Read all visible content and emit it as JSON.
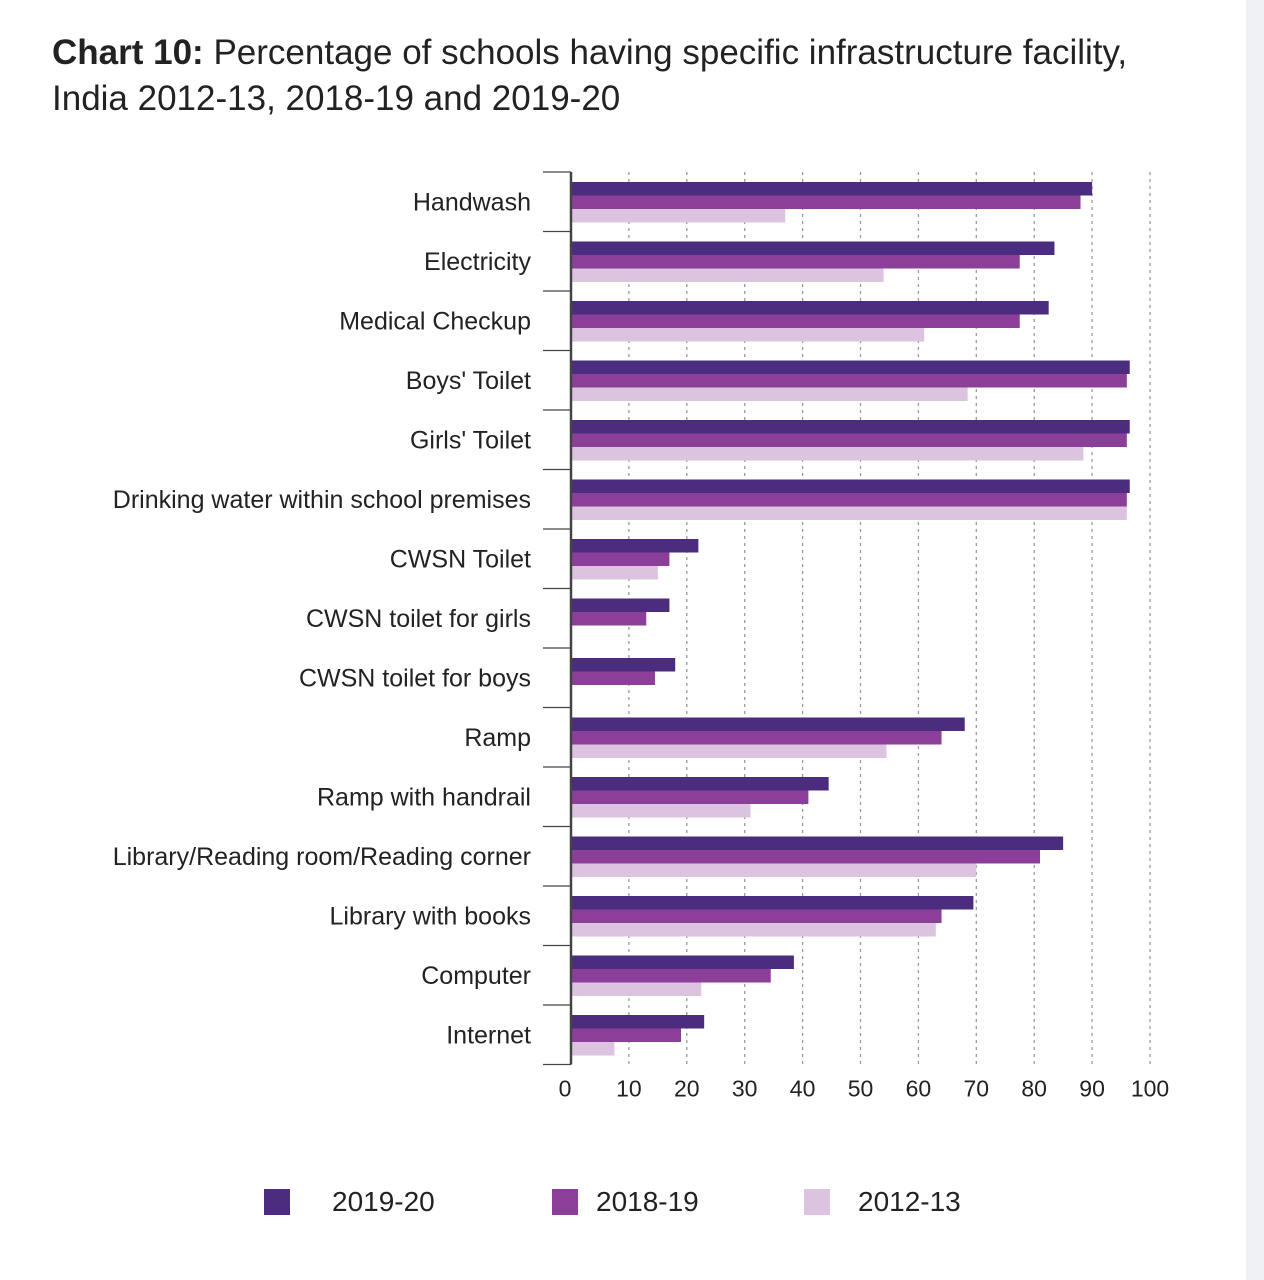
{
  "title": {
    "bold": "Chart 10:",
    "rest": "Percentage of schools having specific infrastructure facility, India 2012-13, 2018-19 and 2019-20"
  },
  "colors": {
    "s2019": "#4b2c7f",
    "s2018": "#8b3f98",
    "s2012": "#dcc3df",
    "grid": "#9a9a9a",
    "axis": "#444444"
  },
  "chart_data": {
    "type": "bar",
    "orientation": "horizontal",
    "title": "Chart 10: Percentage of schools having specific infrastructure facility, India 2012-13, 2018-19 and 2019-20",
    "xlabel": "",
    "ylabel": "",
    "xlim": [
      0,
      100
    ],
    "ticks": [
      0,
      10,
      20,
      30,
      40,
      50,
      60,
      70,
      80,
      90,
      100
    ],
    "grid": "vertical dashed",
    "legend_position": "bottom",
    "categories": [
      "Handwash",
      "Electricity",
      "Medical Checkup",
      "Boys' Toilet",
      "Girls' Toilet",
      "Drinking water within school premises",
      "CWSN Toilet",
      "CWSN toilet for girls",
      "CWSN toilet for boys",
      "Ramp",
      "Ramp with handrail",
      "Library/Reading room/Reading corner",
      "Library with books",
      "Computer",
      "Internet"
    ],
    "series": [
      {
        "name": "2019-20",
        "values": [
          90,
          83.5,
          82.5,
          96.5,
          96.5,
          96.5,
          22,
          17,
          18,
          68,
          44.5,
          85,
          69.5,
          38.5,
          23
        ]
      },
      {
        "name": "2018-19",
        "values": [
          88,
          77.5,
          77.5,
          96,
          96,
          96,
          17,
          13,
          14.5,
          64,
          41,
          81,
          64,
          34.5,
          19
        ]
      },
      {
        "name": "2012-13",
        "values": [
          37,
          54,
          61,
          68.5,
          88.5,
          96,
          15,
          null,
          null,
          54.5,
          31,
          70,
          63,
          22.5,
          7.5
        ]
      }
    ]
  }
}
